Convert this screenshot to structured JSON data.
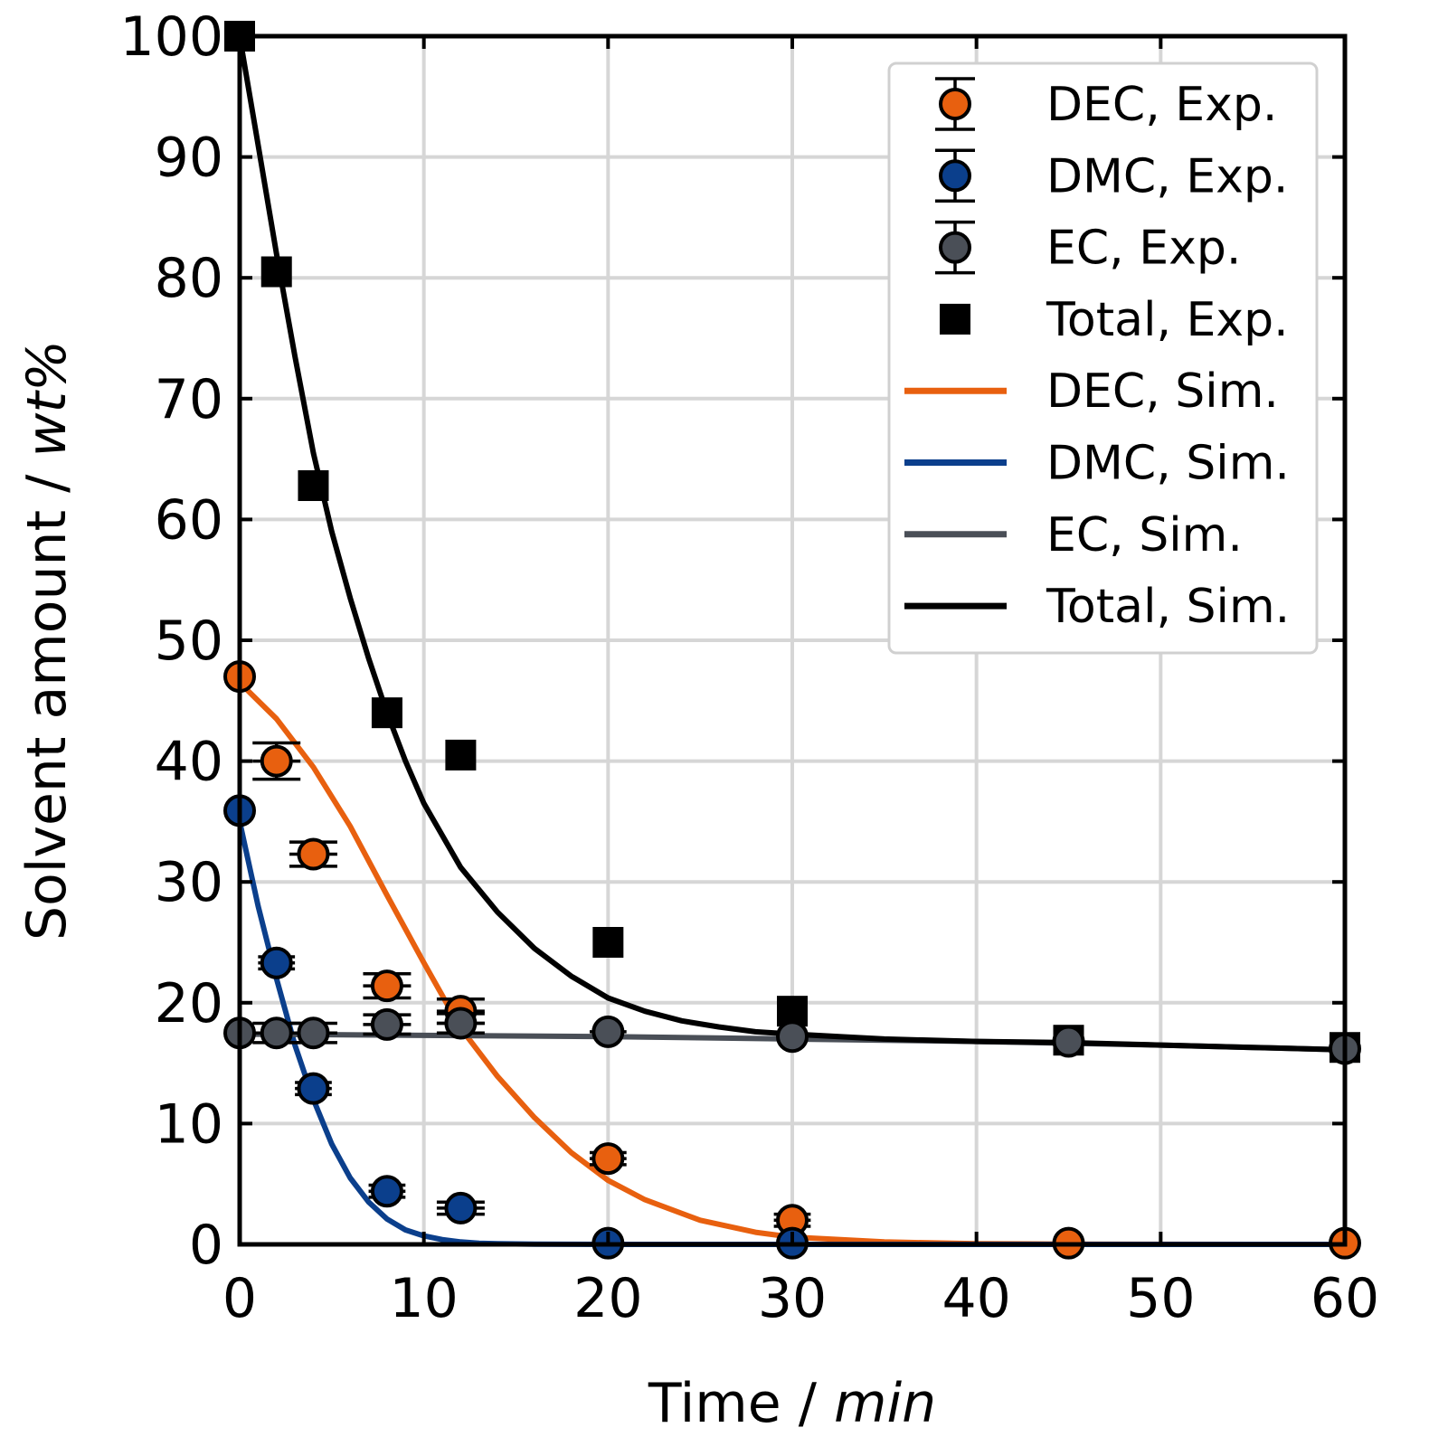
{
  "chart_data": {
    "type": "line",
    "title": "",
    "xlabel_prefix": "Time / ",
    "xlabel_unit": "min",
    "ylabel_prefix": "Solvent amount / ",
    "ylabel_unit": "wt%",
    "xlim": [
      0,
      60
    ],
    "ylim": [
      0,
      100
    ],
    "xticks": [
      0,
      10,
      20,
      30,
      40,
      50,
      60
    ],
    "yticks": [
      0,
      10,
      20,
      30,
      40,
      50,
      60,
      70,
      80,
      90,
      100
    ],
    "grid": true,
    "legend_position": "top-right",
    "colors": {
      "DEC": "#e8600f",
      "DMC": "#0b3f8c",
      "EC": "#4a4f57",
      "Total": "#000000"
    },
    "experimental": [
      {
        "name": "DEC, Exp.",
        "color_key": "DEC",
        "marker": "circle",
        "x": [
          0,
          2,
          4,
          8,
          12,
          20,
          30,
          45,
          60
        ],
        "y": [
          47,
          40,
          32.3,
          21.4,
          19.3,
          7.1,
          2.0,
          0.1,
          0.1
        ],
        "xerr": [
          0,
          1.3,
          1.3,
          1.3,
          1.3,
          1.0,
          1.0,
          0,
          0
        ],
        "yerr": [
          0,
          1.5,
          1.0,
          1.0,
          1.0,
          0.5,
          0.5,
          0,
          0
        ]
      },
      {
        "name": "DMC, Exp.",
        "color_key": "DMC",
        "marker": "circle",
        "x": [
          0,
          2,
          4,
          8,
          12,
          20,
          30
        ],
        "y": [
          35.9,
          23.3,
          12.9,
          4.4,
          3.0,
          0.1,
          0.1
        ],
        "xerr": [
          0,
          1.0,
          1.0,
          1.0,
          1.3,
          0,
          0
        ],
        "yerr": [
          0,
          0.5,
          0.5,
          0.5,
          0.5,
          0,
          0
        ]
      },
      {
        "name": "EC, Exp.",
        "color_key": "EC",
        "marker": "circle",
        "x": [
          0,
          2,
          4,
          8,
          12,
          20,
          30,
          45,
          60
        ],
        "y": [
          17.5,
          17.5,
          17.5,
          18.2,
          18.3,
          17.6,
          17.2,
          16.8,
          16.2
        ],
        "xerr": [
          0,
          1.3,
          1.3,
          1.3,
          1.3,
          1.0,
          0,
          0,
          0
        ],
        "yerr": [
          0,
          0.8,
          0.8,
          0.8,
          0.8,
          0,
          0,
          0.5,
          0
        ]
      },
      {
        "name": "Total, Exp.",
        "color_key": "Total",
        "marker": "square",
        "x": [
          0,
          2,
          4,
          8,
          12,
          20,
          30,
          45,
          60
        ],
        "y": [
          100,
          80.5,
          62.8,
          44.0,
          40.5,
          25.0,
          19.3,
          16.9,
          16.3
        ]
      }
    ],
    "simulated": [
      {
        "name": "DEC, Sim.",
        "color_key": "DEC",
        "x": [
          0,
          2,
          4,
          6,
          8,
          10,
          12,
          14,
          16,
          18,
          20,
          22,
          25,
          28,
          30,
          35,
          40,
          45,
          50,
          55,
          60
        ],
        "y": [
          46.5,
          43.5,
          39.5,
          34.6,
          28.9,
          23.3,
          17.9,
          13.9,
          10.5,
          7.6,
          5.3,
          3.7,
          2.0,
          1.0,
          0.6,
          0.2,
          0.05,
          0.02,
          0.01,
          0,
          0
        ]
      },
      {
        "name": "DMC, Sim.",
        "color_key": "DMC",
        "x": [
          0,
          1,
          2,
          3,
          4,
          5,
          6,
          7,
          8,
          9,
          10,
          11,
          12,
          13,
          14,
          16,
          18,
          20,
          25,
          30,
          60
        ],
        "y": [
          35.0,
          28.0,
          22.0,
          16.5,
          12.0,
          8.3,
          5.5,
          3.5,
          2.1,
          1.2,
          0.7,
          0.4,
          0.2,
          0.1,
          0.05,
          0.02,
          0.01,
          0,
          0,
          0,
          0
        ]
      },
      {
        "name": "EC, Sim.",
        "color_key": "EC",
        "x": [
          0,
          10,
          20,
          30,
          40,
          50,
          60
        ],
        "y": [
          17.4,
          17.3,
          17.2,
          17.0,
          16.8,
          16.5,
          16.1
        ]
      },
      {
        "name": "Total, Sim.",
        "color_key": "Total",
        "x": [
          0,
          1,
          2,
          3,
          4,
          5,
          6,
          7,
          8,
          9,
          10,
          12,
          14,
          16,
          18,
          20,
          22,
          24,
          26,
          28,
          30,
          35,
          40,
          45,
          50,
          55,
          60
        ],
        "y": [
          100,
          91,
          82,
          73.5,
          65.5,
          59,
          53.5,
          48.5,
          44,
          40,
          36.5,
          31.2,
          27.5,
          24.5,
          22.2,
          20.4,
          19.3,
          18.5,
          18.0,
          17.6,
          17.4,
          17.0,
          16.8,
          16.7,
          16.5,
          16.3,
          16.1
        ]
      }
    ],
    "legend": [
      {
        "label": "DEC, Exp.",
        "kind": "errcircle",
        "color_key": "DEC"
      },
      {
        "label": "DMC, Exp.",
        "kind": "errcircle",
        "color_key": "DMC"
      },
      {
        "label": "EC, Exp.",
        "kind": "errcircle",
        "color_key": "EC"
      },
      {
        "label": "Total, Exp.",
        "kind": "square",
        "color_key": "Total"
      },
      {
        "label": "DEC, Sim.",
        "kind": "line",
        "color_key": "DEC"
      },
      {
        "label": "DMC, Sim.",
        "kind": "line",
        "color_key": "DMC"
      },
      {
        "label": "EC, Sim.",
        "kind": "line",
        "color_key": "EC"
      },
      {
        "label": "Total, Sim.",
        "kind": "line",
        "color_key": "Total"
      }
    ]
  }
}
